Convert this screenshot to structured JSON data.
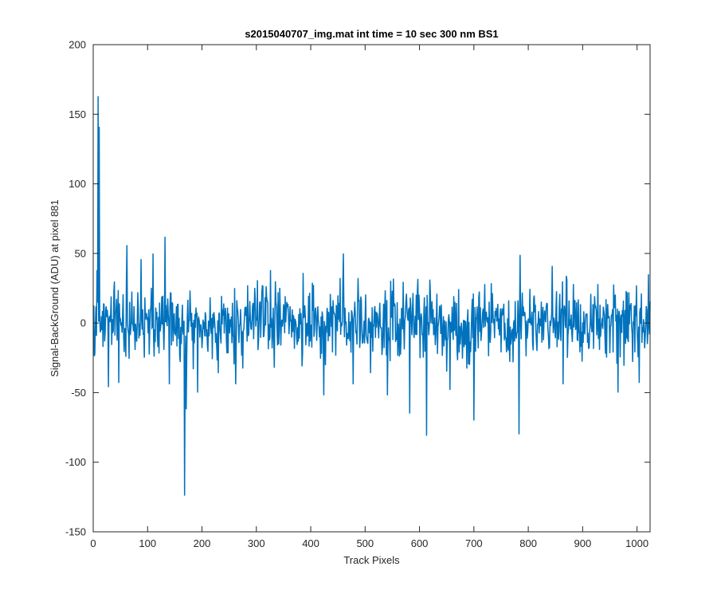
{
  "chart_data": {
    "type": "line",
    "title": "s2015040707_img.mat int time = 10 sec  300 nm BS1",
    "xlabel": "Track Pixels",
    "ylabel": "Signal-BackGround (ADU) at pixel 881",
    "xlim": [
      0,
      1024
    ],
    "ylim": [
      -150,
      200
    ],
    "xticks": [
      0,
      100,
      200,
      300,
      400,
      500,
      600,
      700,
      800,
      900,
      1000
    ],
    "yticks": [
      -150,
      -100,
      -50,
      0,
      50,
      100,
      150,
      200
    ],
    "grid": false,
    "line_color": "#0072BD",
    "noise_amplitude": 18,
    "series": [
      {
        "x_range": [
          1,
          1024
        ],
        "features": [
          {
            "x": 9,
            "y": 163
          },
          {
            "x": 11,
            "y": 141
          },
          {
            "x": 7,
            "y": 38
          },
          {
            "x": 3,
            "y": -22
          },
          {
            "x": 28,
            "y": -46
          },
          {
            "x": 47,
            "y": -43
          },
          {
            "x": 62,
            "y": 56
          },
          {
            "x": 88,
            "y": 46
          },
          {
            "x": 110,
            "y": 50
          },
          {
            "x": 132,
            "y": 62
          },
          {
            "x": 140,
            "y": -44
          },
          {
            "x": 160,
            "y": -28
          },
          {
            "x": 168,
            "y": -124
          },
          {
            "x": 171,
            "y": -62
          },
          {
            "x": 192,
            "y": -50
          },
          {
            "x": 230,
            "y": -36
          },
          {
            "x": 262,
            "y": -44
          },
          {
            "x": 326,
            "y": 38
          },
          {
            "x": 386,
            "y": 36
          },
          {
            "x": 424,
            "y": -52
          },
          {
            "x": 460,
            "y": 50
          },
          {
            "x": 478,
            "y": -44
          },
          {
            "x": 541,
            "y": -52
          },
          {
            "x": 582,
            "y": -65
          },
          {
            "x": 613,
            "y": -81
          },
          {
            "x": 656,
            "y": -48
          },
          {
            "x": 700,
            "y": -70
          },
          {
            "x": 720,
            "y": 28
          },
          {
            "x": 783,
            "y": -80
          },
          {
            "x": 785,
            "y": 49
          },
          {
            "x": 844,
            "y": 41
          },
          {
            "x": 864,
            "y": -44
          },
          {
            "x": 928,
            "y": 28
          },
          {
            "x": 965,
            "y": -50
          },
          {
            "x": 1004,
            "y": -43
          },
          {
            "x": 1021,
            "y": 35
          }
        ]
      }
    ]
  }
}
